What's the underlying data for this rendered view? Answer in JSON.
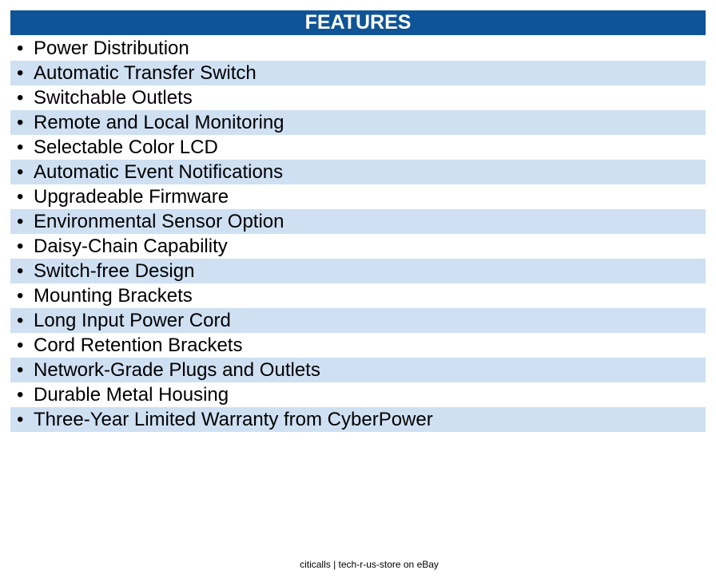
{
  "header": {
    "title": "FEATURES"
  },
  "features": [
    "Power Distribution",
    "Automatic Transfer Switch",
    "Switchable Outlets",
    "Remote and Local Monitoring",
    "Selectable Color LCD",
    "Automatic Event Notifications",
    "Upgradeable Firmware",
    "Environmental Sensor Option",
    "Daisy-Chain Capability",
    "Switch-free Design",
    "Mounting Brackets",
    "Long Input Power Cord",
    "Cord Retention Brackets",
    "Network-Grade Plugs and Outlets",
    "Durable Metal Housing",
    "Three-Year Limited Warranty from CyberPower"
  ],
  "footer": "citicalls | tech-r-us-store on eBay"
}
